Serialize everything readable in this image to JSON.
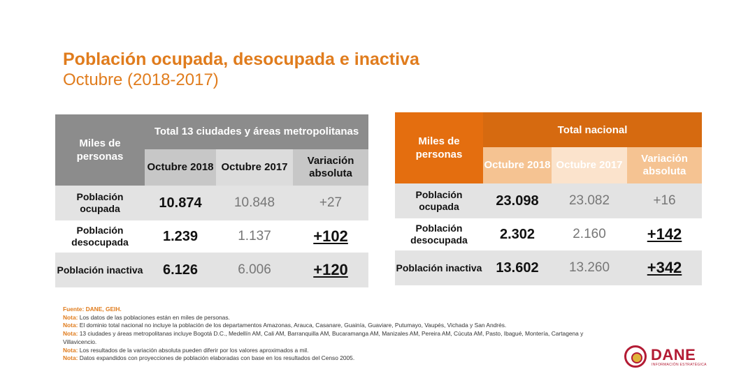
{
  "header": {
    "title": "Población ocupada, desocupada e inactiva",
    "subtitle": "Octubre (2018-2017)"
  },
  "tables": [
    {
      "corner": "Miles de personas",
      "group": "Total 13 ciudades y áreas metropolitanas",
      "columns": [
        "Octubre 2018",
        "Octubre 2017",
        "Variación absoluta"
      ],
      "rows": [
        {
          "label": "Población ocupada",
          "v2018": "10.874",
          "v2017": "10.848",
          "var": "+27"
        },
        {
          "label": "Población desocupada",
          "v2018": "1.239",
          "v2017": "1.137",
          "var": "+102"
        },
        {
          "label": "Población inactiva",
          "v2018": "6.126",
          "v2017": "6.006",
          "var": "+120"
        }
      ]
    },
    {
      "corner": "Miles de personas",
      "group": "Total nacional",
      "columns": [
        "Octubre 2018",
        "Octubre 2017",
        "Variación absoluta"
      ],
      "rows": [
        {
          "label": "Población ocupada",
          "v2018": "23.098",
          "v2017": "23.082",
          "var": "+16"
        },
        {
          "label": "Población desocupada",
          "v2018": "2.302",
          "v2017": "2.160",
          "var": "+142"
        },
        {
          "label": "Población inactiva",
          "v2018": "13.602",
          "v2017": "13.260",
          "var": "+342"
        }
      ]
    }
  ],
  "notes": {
    "source": "Fuente: DANE, GEIH.",
    "label": "Nota:",
    "items": [
      "Los datos de las poblaciones están en miles de personas.",
      "El dominio total nacional no incluye la población de los departamentos Amazonas, Arauca, Casanare, Guainía, Guaviare, Putumayo, Vaupés, Vichada y San Andrés.",
      "13 ciudades y áreas metropolitanas incluye Bogotá D.C., Medellín AM, Cali AM, Barranquilla AM, Bucaramanga AM, Manizales AM, Pereira AM, Cúcuta AM, Pasto, Ibagué, Montería, Cartagena y Villavicencio.",
      "Los resultados de la variación absoluta pueden diferir por los valores aproximados a mil.",
      "Datos expandidos con proyecciones de población elaboradas con base en los resultados del Censo 2005."
    ]
  },
  "logo": {
    "name": "DANE",
    "tagline": "INFORMACIÓN ESTRATÉGICA"
  },
  "colors": {
    "accent": "#e07c1d",
    "table1_header": "#8c8c8c",
    "table2_header": "#d66a10",
    "dane_red": "#b31b34"
  }
}
